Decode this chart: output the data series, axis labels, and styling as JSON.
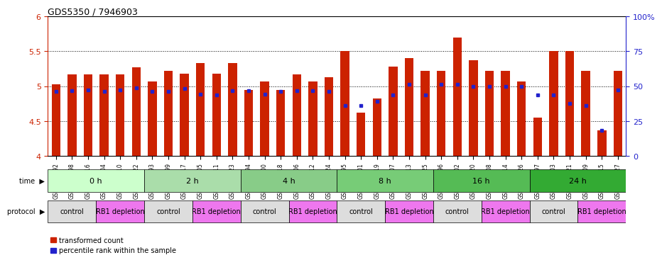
{
  "title": "GDS5350 / 7946903",
  "samples": [
    "GSM1220792",
    "GSM1220798",
    "GSM1220816",
    "GSM1220804",
    "GSM1220810",
    "GSM1220822",
    "GSM1220793",
    "GSM1220799",
    "GSM1220817",
    "GSM1220805",
    "GSM1220811",
    "GSM1220823",
    "GSM1220794",
    "GSM1220800",
    "GSM1220818",
    "GSM1220806",
    "GSM1220812",
    "GSM1220824",
    "GSM1220795",
    "GSM1220801",
    "GSM1220819",
    "GSM1220807",
    "GSM1220813",
    "GSM1220825",
    "GSM1220796",
    "GSM1220802",
    "GSM1220820",
    "GSM1220808",
    "GSM1220814",
    "GSM1220826",
    "GSM1220797",
    "GSM1220803",
    "GSM1220821",
    "GSM1220809",
    "GSM1220815",
    "GSM1220827"
  ],
  "red_values": [
    5.03,
    5.17,
    5.17,
    5.17,
    5.17,
    5.27,
    5.07,
    5.22,
    5.18,
    5.33,
    5.18,
    5.33,
    4.95,
    5.07,
    4.95,
    5.17,
    5.07,
    5.13,
    5.5,
    4.62,
    4.82,
    5.28,
    5.4,
    5.22,
    5.22,
    5.7,
    5.37,
    5.22,
    5.22,
    5.07,
    4.55,
    5.5,
    5.5,
    5.22,
    4.37,
    5.22
  ],
  "blue_values": [
    4.92,
    4.93,
    4.95,
    4.92,
    4.95,
    4.98,
    4.92,
    4.92,
    4.97,
    4.88,
    4.87,
    4.93,
    4.93,
    4.88,
    4.92,
    4.93,
    4.93,
    4.92,
    4.72,
    4.72,
    4.78,
    4.87,
    5.03,
    4.87,
    5.03,
    5.03,
    5.0,
    5.0,
    5.0,
    5.0,
    4.87,
    4.87,
    4.75,
    4.72,
    4.37,
    4.95
  ],
  "time_groups": [
    {
      "label": "0 h",
      "start": 0,
      "end": 6,
      "color": "#ccffcc"
    },
    {
      "label": "2 h",
      "start": 6,
      "end": 12,
      "color": "#aaddaa"
    },
    {
      "label": "4 h",
      "start": 12,
      "end": 18,
      "color": "#88cc88"
    },
    {
      "label": "8 h",
      "start": 18,
      "end": 24,
      "color": "#77cc77"
    },
    {
      "label": "16 h",
      "start": 24,
      "end": 30,
      "color": "#55bb55"
    },
    {
      "label": "24 h",
      "start": 30,
      "end": 36,
      "color": "#33aa33"
    }
  ],
  "protocol_groups": [
    {
      "label": "control",
      "start": 0,
      "end": 3,
      "color": "#dddddd"
    },
    {
      "label": "RB1 depletion",
      "start": 3,
      "end": 6,
      "color": "#ee77ee"
    },
    {
      "label": "control",
      "start": 6,
      "end": 9,
      "color": "#dddddd"
    },
    {
      "label": "RB1 depletion",
      "start": 9,
      "end": 12,
      "color": "#ee77ee"
    },
    {
      "label": "control",
      "start": 12,
      "end": 15,
      "color": "#dddddd"
    },
    {
      "label": "RB1 depletion",
      "start": 15,
      "end": 18,
      "color": "#ee77ee"
    },
    {
      "label": "control",
      "start": 18,
      "end": 21,
      "color": "#dddddd"
    },
    {
      "label": "RB1 depletion",
      "start": 21,
      "end": 24,
      "color": "#ee77ee"
    },
    {
      "label": "control",
      "start": 24,
      "end": 27,
      "color": "#dddddd"
    },
    {
      "label": "RB1 depletion",
      "start": 27,
      "end": 30,
      "color": "#ee77ee"
    },
    {
      "label": "control",
      "start": 30,
      "end": 33,
      "color": "#dddddd"
    },
    {
      "label": "RB1 depletion",
      "start": 33,
      "end": 36,
      "color": "#ee77ee"
    }
  ],
  "ylim": [
    4.0,
    6.0
  ],
  "yticks_left": [
    4.0,
    4.5,
    5.0,
    5.5,
    6.0
  ],
  "yticks_right": [
    0,
    25,
    50,
    75,
    100
  ],
  "bar_color": "#cc2200",
  "dot_color": "#2222cc",
  "grid_values": [
    4.5,
    5.0,
    5.5
  ],
  "background_color": "#ffffff"
}
